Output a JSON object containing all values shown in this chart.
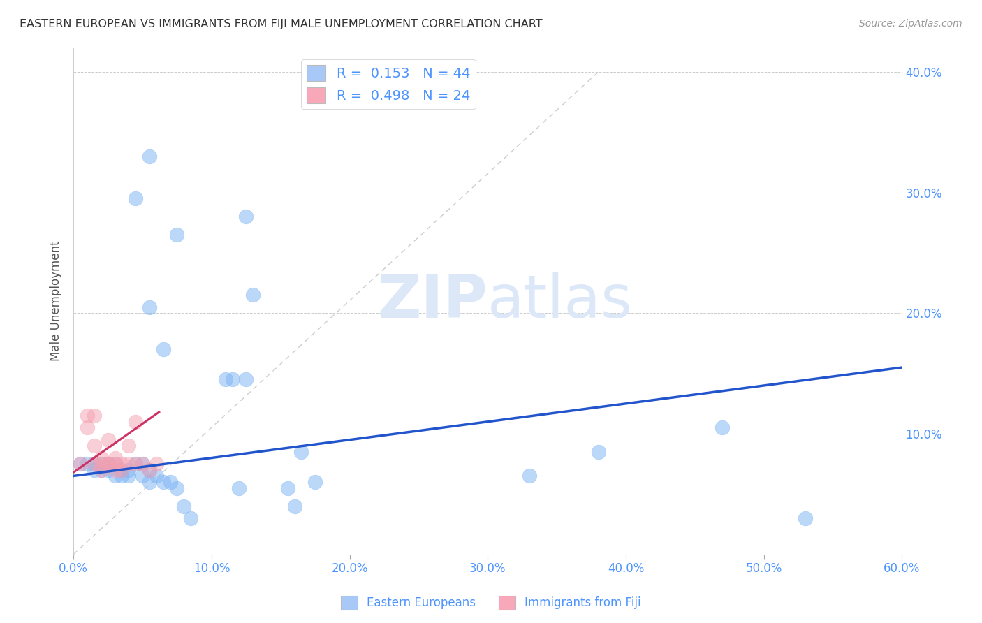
{
  "title": "EASTERN EUROPEAN VS IMMIGRANTS FROM FIJI MALE UNEMPLOYMENT CORRELATION CHART",
  "source": "Source: ZipAtlas.com",
  "ylabel": "Male Unemployment",
  "xlim": [
    0.0,
    0.6
  ],
  "ylim": [
    0.0,
    0.42
  ],
  "xticks": [
    0.0,
    0.1,
    0.2,
    0.3,
    0.4,
    0.5,
    0.6
  ],
  "yticks": [
    0.1,
    0.2,
    0.3,
    0.4
  ],
  "ytick_labels": [
    "10.0%",
    "20.0%",
    "30.0%",
    "40.0%"
  ],
  "xtick_labels": [
    "0.0%",
    "10.0%",
    "20.0%",
    "30.0%",
    "40.0%",
    "50.0%",
    "60.0%"
  ],
  "grid_color": "#cccccc",
  "background_color": "#ffffff",
  "legend_R1": "0.153",
  "legend_N1": "44",
  "legend_R2": "0.498",
  "legend_N2": "24",
  "legend_color": "#4d94ff",
  "watermark_zip": "ZIP",
  "watermark_atlas": "atlas",
  "blue_scatter_x": [
    0.055,
    0.045,
    0.075,
    0.055,
    0.065,
    0.11,
    0.115,
    0.125,
    0.125,
    0.13,
    0.005,
    0.01,
    0.015,
    0.015,
    0.02,
    0.02,
    0.025,
    0.025,
    0.03,
    0.03,
    0.035,
    0.035,
    0.04,
    0.04,
    0.045,
    0.05,
    0.05,
    0.055,
    0.055,
    0.06,
    0.065,
    0.07,
    0.075,
    0.08,
    0.085,
    0.12,
    0.155,
    0.16,
    0.165,
    0.175,
    0.33,
    0.38,
    0.47,
    0.53
  ],
  "blue_scatter_y": [
    0.33,
    0.295,
    0.265,
    0.205,
    0.17,
    0.145,
    0.145,
    0.145,
    0.28,
    0.215,
    0.075,
    0.075,
    0.075,
    0.07,
    0.075,
    0.07,
    0.075,
    0.07,
    0.075,
    0.065,
    0.065,
    0.07,
    0.065,
    0.07,
    0.075,
    0.065,
    0.075,
    0.06,
    0.07,
    0.065,
    0.06,
    0.06,
    0.055,
    0.04,
    0.03,
    0.055,
    0.055,
    0.04,
    0.085,
    0.06,
    0.065,
    0.085,
    0.105,
    0.03
  ],
  "pink_scatter_x": [
    0.005,
    0.01,
    0.01,
    0.015,
    0.015,
    0.015,
    0.02,
    0.02,
    0.02,
    0.025,
    0.025,
    0.025,
    0.03,
    0.03,
    0.03,
    0.035,
    0.035,
    0.04,
    0.04,
    0.045,
    0.045,
    0.05,
    0.055,
    0.06
  ],
  "pink_scatter_y": [
    0.075,
    0.115,
    0.105,
    0.115,
    0.09,
    0.075,
    0.075,
    0.08,
    0.07,
    0.075,
    0.095,
    0.075,
    0.08,
    0.075,
    0.07,
    0.075,
    0.07,
    0.09,
    0.075,
    0.11,
    0.075,
    0.075,
    0.07,
    0.075
  ],
  "blue_line_x": [
    0.0,
    0.6
  ],
  "blue_line_y": [
    0.065,
    0.155
  ],
  "pink_line_x": [
    0.0,
    0.062
  ],
  "pink_line_y": [
    0.068,
    0.118
  ],
  "blue_dot_color": "#7ab3f5",
  "pink_dot_color": "#f5a0b0",
  "blue_line_color": "#2255cc",
  "pink_line_color": "#cc3366",
  "blue_trend_x": [
    0.0,
    0.38
  ],
  "blue_trend_y": [
    0.0,
    0.4
  ],
  "legend_box_color_blue": "#a8c8f8",
  "legend_box_color_pink": "#f8a8b8"
}
